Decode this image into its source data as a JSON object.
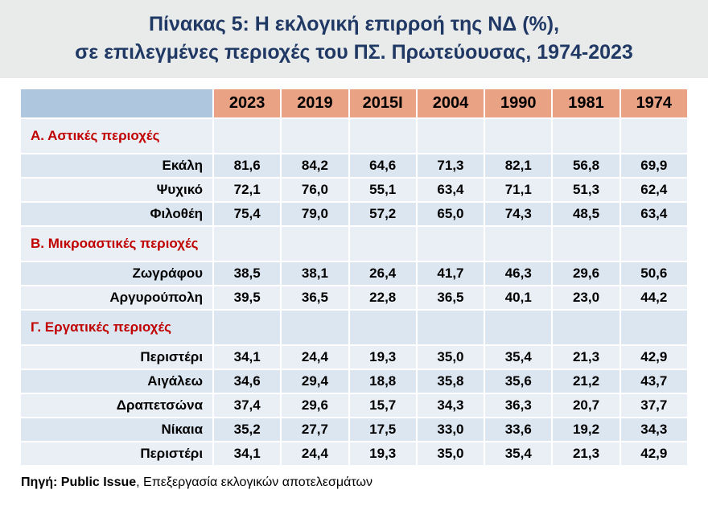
{
  "title": {
    "line1": "Πίνακας 5: Η εκλογική επιρροή της ΝΔ (%),",
    "line2": "σε επιλεγμένες περιοχές του ΠΣ. Πρωτεύουσας, 1974-2023"
  },
  "chart_data": {
    "type": "table",
    "title": "Πίνακας 5: Η εκλογική επιρροή της ΝΔ (%), σε επιλεγμένες περιοχές του ΠΣ. Πρωτεύουσας, 1974-2023",
    "columns": [
      "2023",
      "2019",
      "2015I",
      "2004",
      "1990",
      "1981",
      "1974"
    ],
    "rows": [
      {
        "type": "section",
        "label": "Α. Αστικές περιοχές"
      },
      {
        "type": "data",
        "label": "Εκάλη",
        "values": [
          "81,6",
          "84,2",
          "64,6",
          "71,3",
          "82,1",
          "56,8",
          "69,9"
        ]
      },
      {
        "type": "data",
        "label": "Ψυχικό",
        "values": [
          "72,1",
          "76,0",
          "55,1",
          "63,4",
          "71,1",
          "51,3",
          "62,4"
        ]
      },
      {
        "type": "data",
        "label": "Φιλοθέη",
        "values": [
          "75,4",
          "79,0",
          "57,2",
          "65,0",
          "74,3",
          "48,5",
          "63,4"
        ]
      },
      {
        "type": "section",
        "label": "Β. Μικροαστικές περιοχές"
      },
      {
        "type": "data",
        "label": "Ζωγράφου",
        "values": [
          "38,5",
          "38,1",
          "26,4",
          "41,7",
          "46,3",
          "29,6",
          "50,6"
        ]
      },
      {
        "type": "data",
        "label": "Αργυρούπολη",
        "values": [
          "39,5",
          "36,5",
          "22,8",
          "36,5",
          "40,1",
          "23,0",
          "44,2"
        ]
      },
      {
        "type": "section",
        "label": "Γ. Εργατικές περιοχές"
      },
      {
        "type": "data",
        "label": "Περιστέρι",
        "values": [
          "34,1",
          "24,4",
          "19,3",
          "35,0",
          "35,4",
          "21,3",
          "42,9"
        ]
      },
      {
        "type": "data",
        "label": "Αιγάλεω",
        "values": [
          "34,6",
          "29,4",
          "18,8",
          "35,8",
          "35,6",
          "21,2",
          "43,7"
        ]
      },
      {
        "type": "data",
        "label": "Δραπετσώνα",
        "values": [
          "37,4",
          "29,6",
          "15,7",
          "34,3",
          "36,3",
          "20,7",
          "37,7"
        ]
      },
      {
        "type": "data",
        "label": "Νίκαια",
        "values": [
          "35,2",
          "27,7",
          "17,5",
          "33,0",
          "33,6",
          "19,2",
          "34,3"
        ]
      },
      {
        "type": "data",
        "label": "Περιστέρι",
        "values": [
          "34,1",
          "24,4",
          "19,3",
          "35,0",
          "35,4",
          "21,3",
          "42,9"
        ]
      }
    ]
  },
  "footer": {
    "source_bold": "Πηγή: Public Issue",
    "source_rest": ", Επεξεργασία εκλογικών αποτελεσμάτων"
  },
  "colors": {
    "title_band_bg": "#e9ebeb",
    "title_color": "#203864",
    "header_bg": "#e9a284",
    "corner_bg": "#aec6de",
    "band_light": "#eaeff6",
    "band_dark": "#dce6f1",
    "section_color": "#c00000"
  }
}
